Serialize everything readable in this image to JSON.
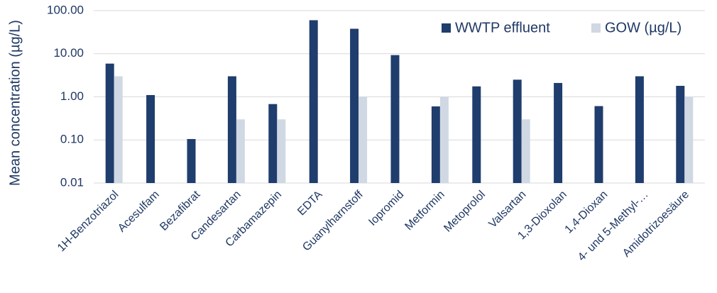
{
  "chart_data": {
    "type": "bar",
    "y_label": "Mean concentration (µg/L)",
    "categories": [
      "1H-Benzotriazol",
      "Acesulfam",
      "Bezafibrat",
      "Candesartan",
      "Carbamazepin",
      "EDTA",
      "Guanylharnstoff",
      "Iopromid",
      "Metformin",
      "Metoprolol",
      "Valsartan",
      "1,3-Dioxolan",
      "1,4-Dioxan",
      "4- und 5-Methyl-…",
      "Amidotrizoesäure"
    ],
    "series": [
      {
        "name": "WWTP effluent",
        "color": "#1f3d6d",
        "values": [
          5.9,
          1.1,
          0.105,
          3.0,
          0.68,
          60,
          38,
          9.3,
          0.6,
          1.75,
          2.5,
          2.1,
          0.61,
          3.0,
          1.8
        ]
      },
      {
        "name": "GOW (µg/L)",
        "color": "#d0d8e3",
        "values": [
          3.0,
          null,
          null,
          0.3,
          0.3,
          null,
          1.0,
          null,
          1.0,
          null,
          0.3,
          null,
          null,
          null,
          1.0
        ]
      }
    ],
    "log_scale": true,
    "ylim": [
      0.01,
      100
    ],
    "yticks": [
      {
        "value": 0.01,
        "label": "0.01"
      },
      {
        "value": 0.1,
        "label": "0.10"
      },
      {
        "value": 1,
        "label": "1.00"
      },
      {
        "value": 10,
        "label": "10.00"
      },
      {
        "value": 100,
        "label": "100.00"
      }
    ],
    "grid": true,
    "legend": "upper right"
  }
}
